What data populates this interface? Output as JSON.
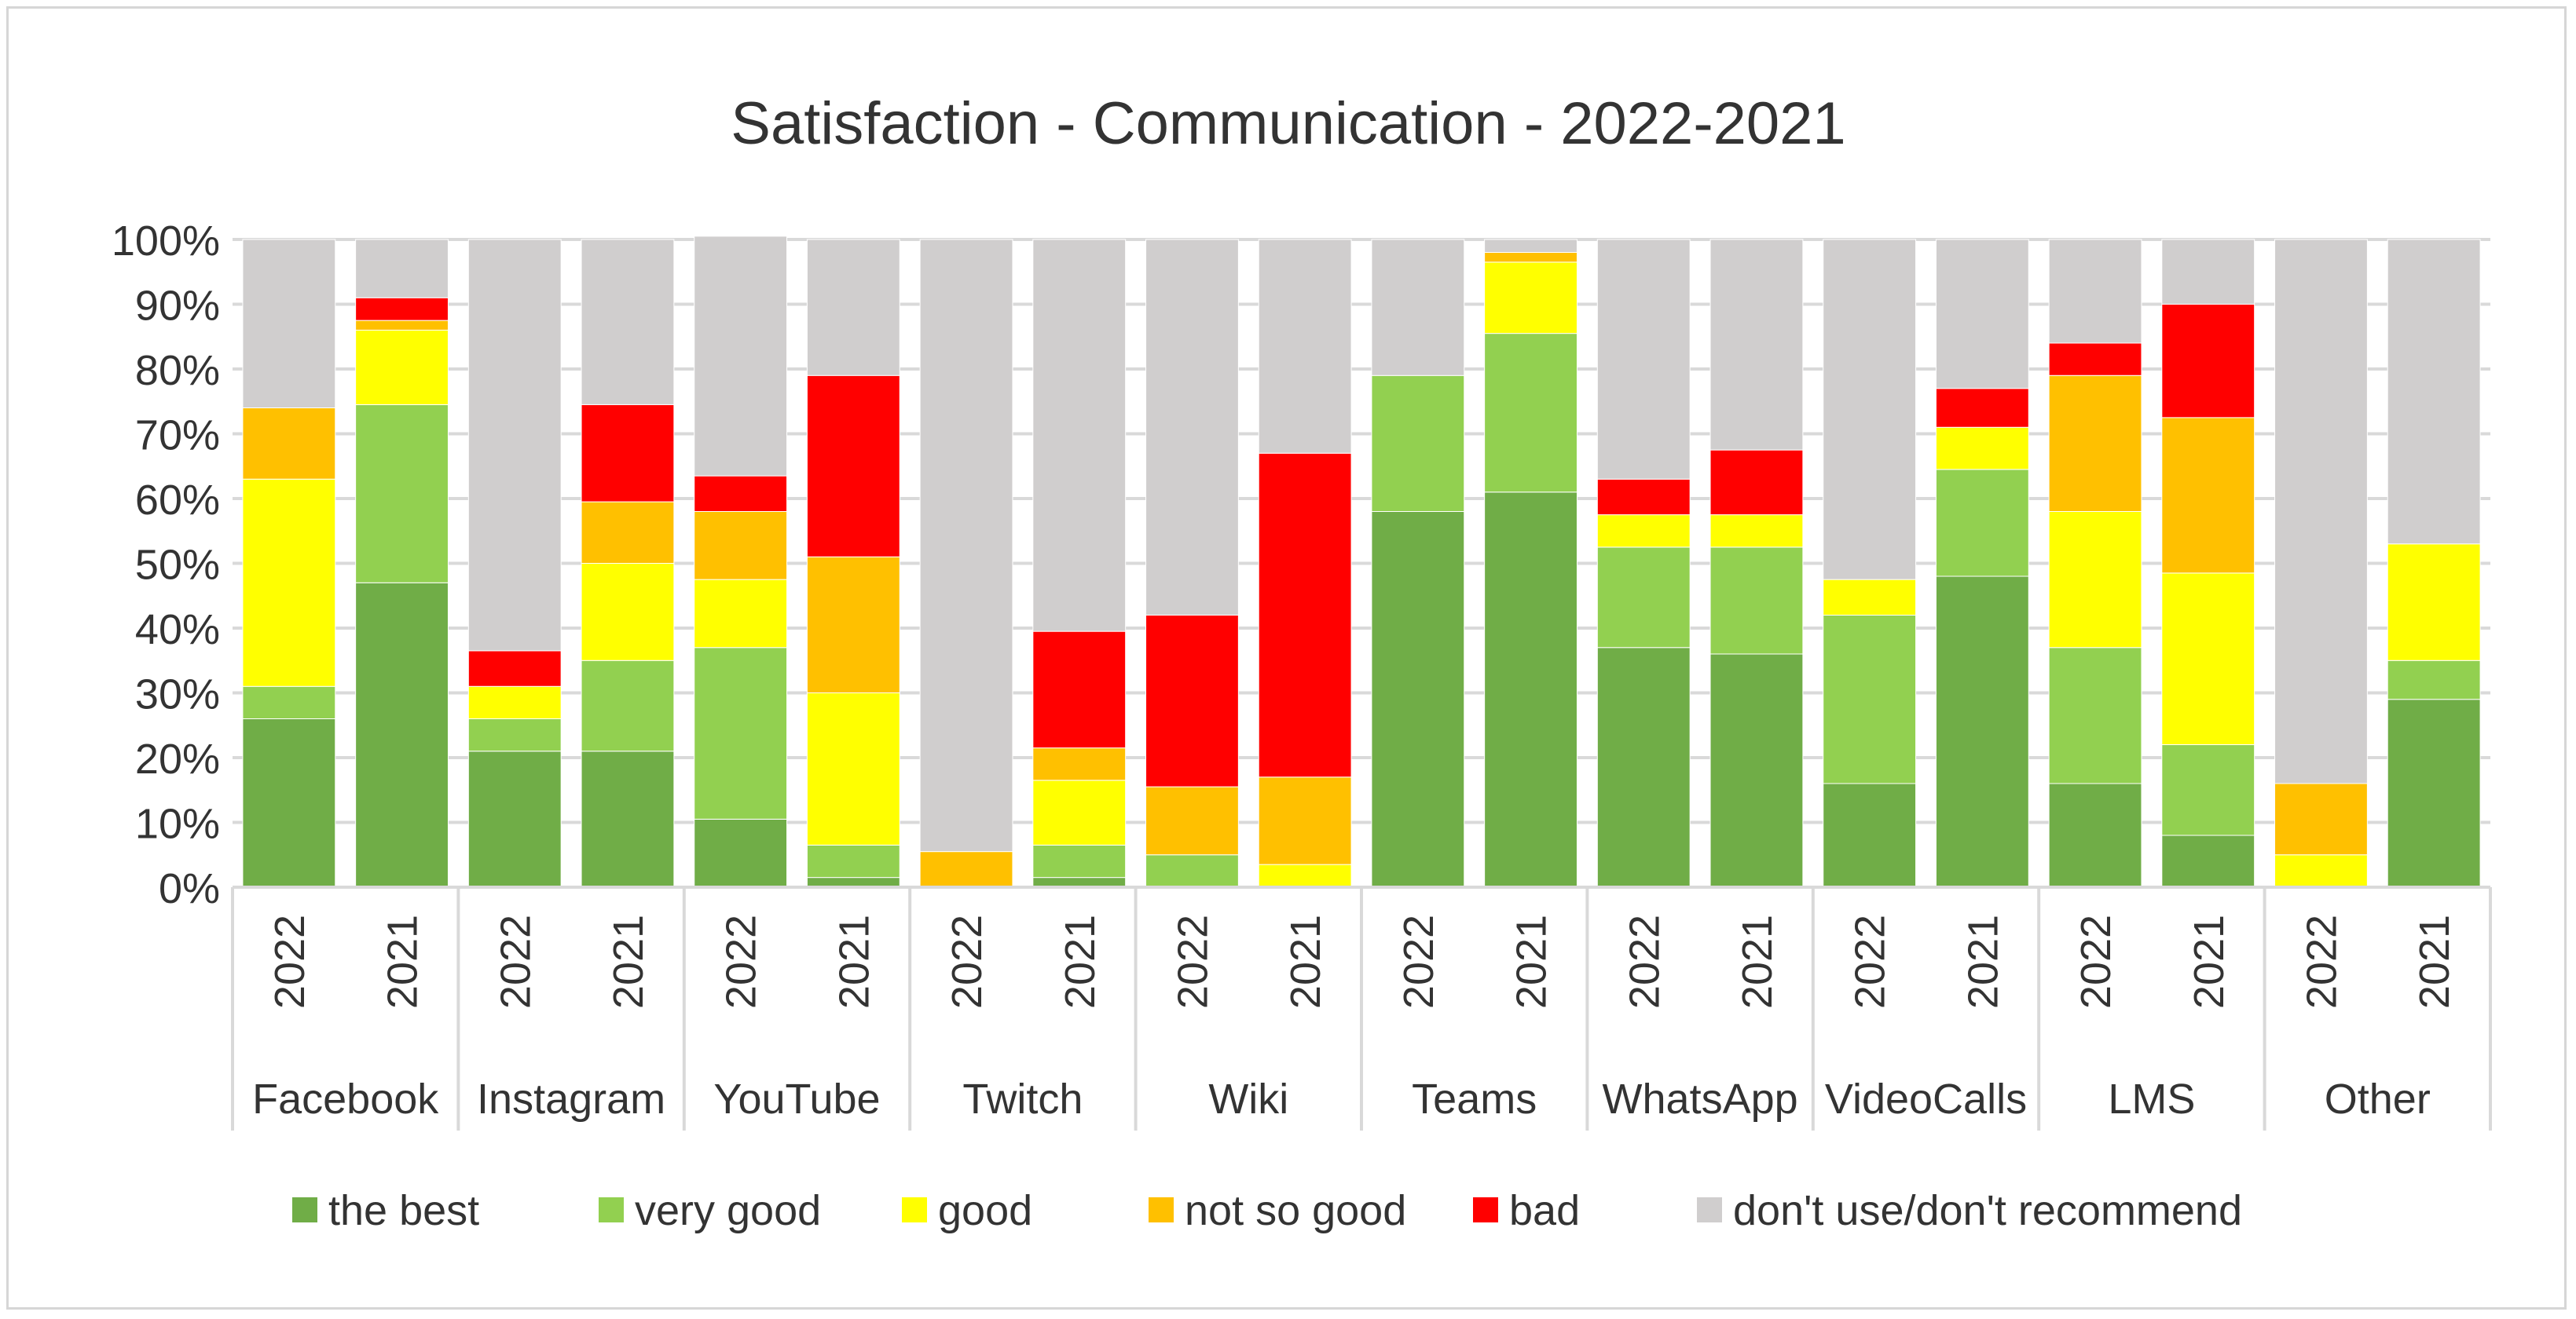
{
  "chart_data": {
    "type": "bar",
    "stacked": true,
    "title": "Satisfaction - Communication - 2022-2021",
    "xlabel": "",
    "ylabel": "",
    "ylim": [
      0,
      100
    ],
    "y_ticks": [
      "0%",
      "10%",
      "20%",
      "30%",
      "40%",
      "50%",
      "60%",
      "70%",
      "80%",
      "90%",
      "100%"
    ],
    "groups": [
      "Facebook",
      "Instagram",
      "YouTube",
      "Twitch",
      "Wiki",
      "Teams",
      "WhatsApp",
      "VideoCalls",
      "LMS",
      "Other"
    ],
    "sub_categories": [
      "2022",
      "2021",
      "2022",
      "2021",
      "2022",
      "2021",
      "2022",
      "2021",
      "2022",
      "2021",
      "2022",
      "2021",
      "2022",
      "2021",
      "2022",
      "2021",
      "2022",
      "2021",
      "2022",
      "2021"
    ],
    "legend_position": "bottom",
    "series": [
      {
        "name": "the best",
        "color": "#70ad47",
        "values": [
          26,
          47,
          21,
          21,
          10.5,
          1.5,
          0,
          1.5,
          0,
          0,
          58,
          61,
          37,
          36,
          16,
          48,
          16,
          8,
          0,
          29
        ]
      },
      {
        "name": "very good",
        "color": "#92d050",
        "values": [
          5,
          27.5,
          5,
          14,
          26.5,
          5,
          0,
          5,
          5,
          0,
          21,
          24.5,
          15.5,
          16.5,
          26,
          16.5,
          21,
          14,
          0,
          6
        ]
      },
      {
        "name": "good",
        "color": "#ffff00",
        "values": [
          32,
          11.5,
          5,
          15,
          10.5,
          23.5,
          0,
          10,
          0,
          3.5,
          0,
          11,
          5,
          5,
          5.5,
          6.5,
          21,
          26.5,
          5,
          18
        ]
      },
      {
        "name": "not so good",
        "color": "#ffc000",
        "values": [
          11,
          1.5,
          0,
          9.5,
          10.5,
          21,
          5.5,
          5,
          10.5,
          13.5,
          0,
          1.5,
          0,
          0,
          0,
          0,
          21,
          24,
          11,
          0
        ]
      },
      {
        "name": "bad",
        "color": "#ff0000",
        "values": [
          0,
          3.5,
          5.5,
          15,
          5.5,
          28,
          0,
          18,
          26.5,
          50,
          0,
          0,
          5.5,
          10,
          0,
          6,
          5,
          17.5,
          0,
          0
        ]
      },
      {
        "name": "don't use/don't recommend",
        "color": "#d0cece",
        "values": [
          26,
          9,
          63.5,
          25.5,
          37,
          21,
          94.5,
          60.5,
          58,
          33,
          21,
          2,
          37,
          32.5,
          52.5,
          23,
          16,
          10,
          84,
          47
        ]
      }
    ]
  }
}
